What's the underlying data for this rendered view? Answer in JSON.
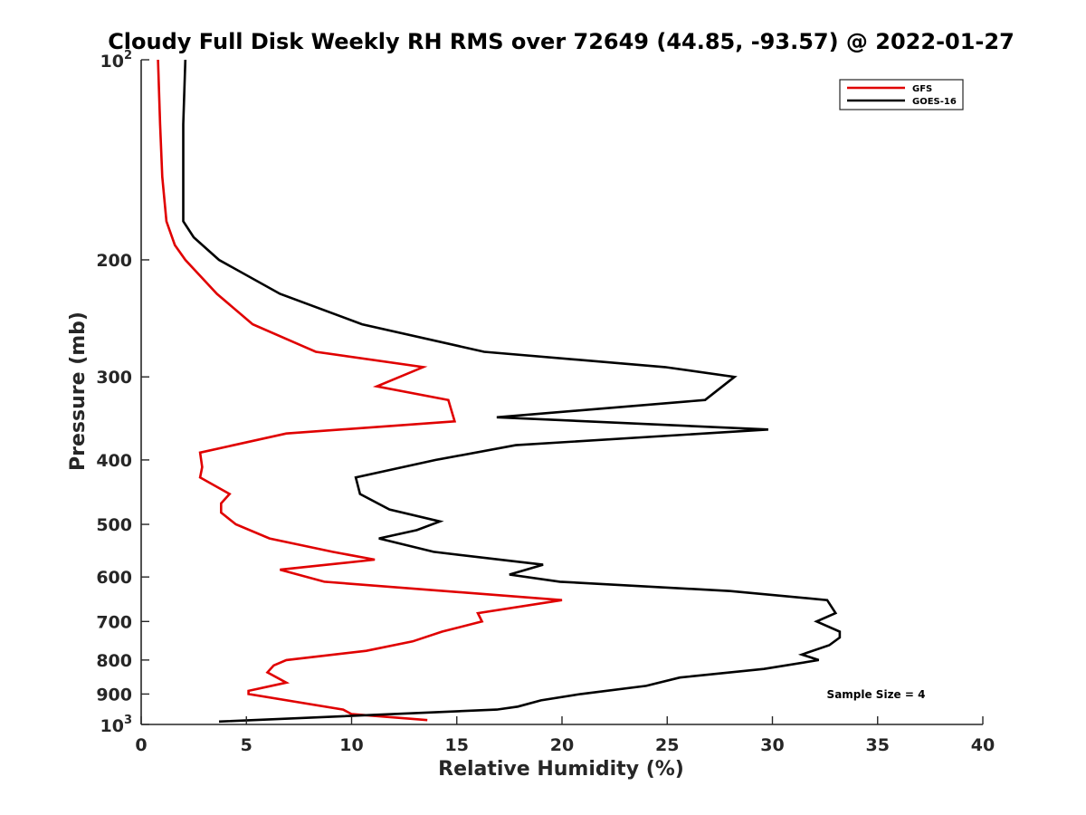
{
  "chart_data": {
    "type": "line",
    "title": "Cloudy Full Disk Weekly RH RMS over 72649 (44.85, -93.57) @ 2022-01-27",
    "xlabel": "Relative Humidity (%)",
    "ylabel": "Pressure (mb)",
    "xlim": [
      0,
      40
    ],
    "ylim": [
      100,
      1000
    ],
    "y_scale": "log",
    "y_reversed": true,
    "grid": false,
    "legend_position": "top-right",
    "x_ticks": [
      "0",
      "5",
      "10",
      "15",
      "20",
      "25",
      "30",
      "35",
      "40"
    ],
    "y_ticks": [
      {
        "value": 100,
        "base": "10",
        "exp": "2"
      },
      {
        "value": 200,
        "label": "200"
      },
      {
        "value": 300,
        "label": "300"
      },
      {
        "value": 400,
        "label": "400"
      },
      {
        "value": 500,
        "label": "500"
      },
      {
        "value": 600,
        "label": "600"
      },
      {
        "value": 700,
        "label": "700"
      },
      {
        "value": 800,
        "label": "800"
      },
      {
        "value": 900,
        "label": "900"
      },
      {
        "value": 1000,
        "base": "10",
        "exp": "3"
      }
    ],
    "series": [
      {
        "name": "GFS",
        "color": "#e00000",
        "points": [
          [
            0.8,
            100
          ],
          [
            0.9,
            125
          ],
          [
            1.0,
            150
          ],
          [
            1.2,
            175
          ],
          [
            1.6,
            190
          ],
          [
            2.1,
            200
          ],
          [
            3.6,
            225
          ],
          [
            5.3,
            250
          ],
          [
            8.3,
            275
          ],
          [
            13.4,
            290
          ],
          [
            11.2,
            310
          ],
          [
            14.6,
            325
          ],
          [
            14.9,
            350
          ],
          [
            6.9,
            365
          ],
          [
            2.8,
            390
          ],
          [
            2.9,
            410
          ],
          [
            2.8,
            425
          ],
          [
            4.2,
            450
          ],
          [
            3.8,
            465
          ],
          [
            3.8,
            480
          ],
          [
            4.5,
            500
          ],
          [
            6.1,
            525
          ],
          [
            9.1,
            550
          ],
          [
            11.1,
            565
          ],
          [
            6.6,
            585
          ],
          [
            8.7,
            610
          ],
          [
            20.0,
            650
          ],
          [
            16.0,
            680
          ],
          [
            16.2,
            700
          ],
          [
            14.3,
            725
          ],
          [
            12.9,
            750
          ],
          [
            10.7,
            775
          ],
          [
            6.9,
            800
          ],
          [
            6.3,
            815
          ],
          [
            6.0,
            835
          ],
          [
            6.9,
            865
          ],
          [
            5.1,
            890
          ],
          [
            5.1,
            900
          ],
          [
            9.6,
            950
          ],
          [
            10.0,
            965
          ],
          [
            13.6,
            985
          ]
        ]
      },
      {
        "name": "GOES-16",
        "color": "#000000",
        "points": [
          [
            2.1,
            100
          ],
          [
            2.0,
            125
          ],
          [
            2.0,
            150
          ],
          [
            2.0,
            175
          ],
          [
            2.5,
            185
          ],
          [
            3.7,
            200
          ],
          [
            6.6,
            225
          ],
          [
            10.5,
            250
          ],
          [
            16.3,
            275
          ],
          [
            24.9,
            290
          ],
          [
            28.2,
            300
          ],
          [
            26.8,
            325
          ],
          [
            16.9,
            345
          ],
          [
            29.8,
            360
          ],
          [
            17.8,
            380
          ],
          [
            14.0,
            400
          ],
          [
            10.2,
            425
          ],
          [
            10.4,
            450
          ],
          [
            11.8,
            475
          ],
          [
            14.2,
            495
          ],
          [
            13.1,
            510
          ],
          [
            11.3,
            525
          ],
          [
            13.9,
            550
          ],
          [
            19.1,
            575
          ],
          [
            17.5,
            595
          ],
          [
            19.9,
            610
          ],
          [
            28.0,
            630
          ],
          [
            32.6,
            650
          ],
          [
            33.0,
            680
          ],
          [
            32.1,
            700
          ],
          [
            33.2,
            725
          ],
          [
            33.2,
            740
          ],
          [
            32.7,
            760
          ],
          [
            31.4,
            785
          ],
          [
            32.2,
            800
          ],
          [
            29.6,
            825
          ],
          [
            25.6,
            850
          ],
          [
            24.0,
            875
          ],
          [
            20.9,
            900
          ],
          [
            19.0,
            920
          ],
          [
            17.9,
            940
          ],
          [
            16.9,
            950
          ],
          [
            3.7,
            990
          ]
        ]
      }
    ],
    "annotation": "Sample Size = 4"
  }
}
